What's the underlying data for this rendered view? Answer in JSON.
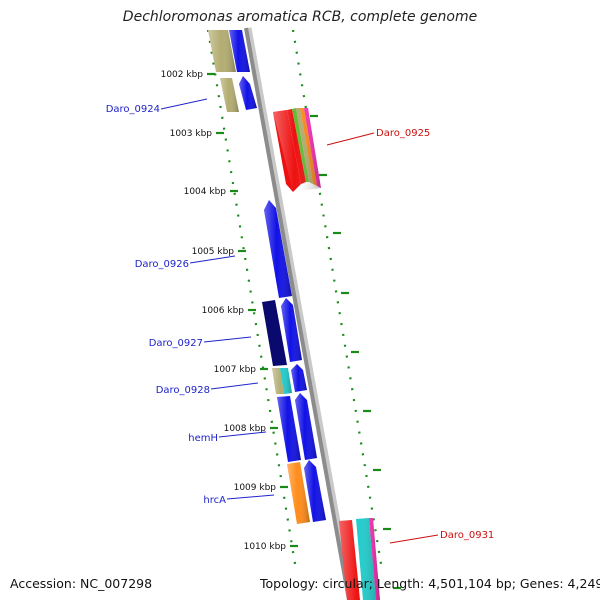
{
  "title": "Dechloromonas aromatica RCB, complete genome",
  "accession": "Accession: NC_007298",
  "summary": "Topology: circular; Length: 4,501,104 bp; Genes: 4,249",
  "ticks": [
    {
      "label": "1002 kbp"
    },
    {
      "label": "1003 kbp"
    },
    {
      "label": "1004 kbp"
    },
    {
      "label": "1005 kbp"
    },
    {
      "label": "1006 kbp"
    },
    {
      "label": "1007 kbp"
    },
    {
      "label": "1008 kbp"
    },
    {
      "label": "1009 kbp"
    },
    {
      "label": "1010 kbp"
    }
  ],
  "gene_labels": [
    {
      "text": "Daro_0924",
      "strand": "forward"
    },
    {
      "text": "Daro_0925",
      "strand": "reverse"
    },
    {
      "text": "Daro_0926",
      "strand": "forward"
    },
    {
      "text": "Daro_0927",
      "strand": "forward"
    },
    {
      "text": "Daro_0928",
      "strand": "forward"
    },
    {
      "text": "hemH",
      "strand": "forward"
    },
    {
      "text": "hrcA",
      "strand": "forward"
    },
    {
      "text": "Daro_0931",
      "strand": "reverse"
    }
  ],
  "colors": {
    "backbone": "#8c8c8c",
    "forward_label": "#1f24c8",
    "reverse_label": "#cc1111",
    "tick": "#1a8a1a",
    "gene_blue": "#1111e6",
    "gene_navy": "#0a0a6e",
    "gene_olive": "#b3ad72",
    "gene_orange": "#ff8c1a",
    "gene_red": "#ee1111",
    "gene_cyan": "#22cccc",
    "gene_magenta": "#ff33bb",
    "gene_green": "#66bb33"
  }
}
